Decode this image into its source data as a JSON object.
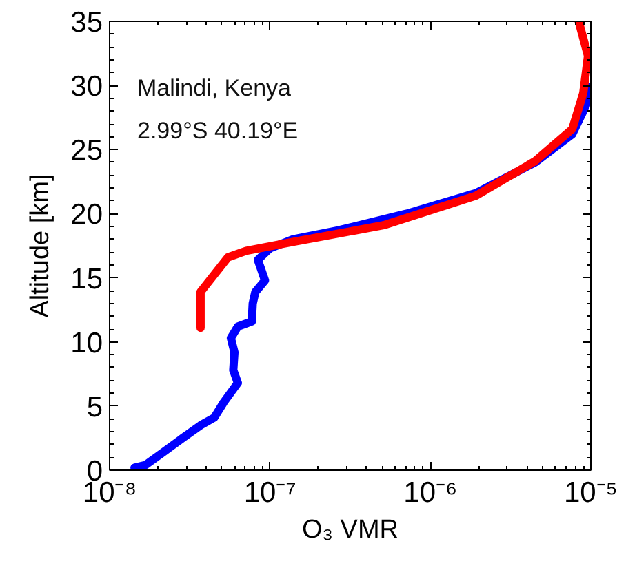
{
  "chart_data": {
    "type": "line",
    "xlabel": "O₃ VMR",
    "ylabel": "Altitude [km]",
    "annotations": [
      "Malindi, Kenya",
      "2.99°S 40.19°E"
    ],
    "log": "x",
    "grid": false,
    "marker": "none",
    "line_style": "solid",
    "xlim": [
      1e-08,
      1e-05
    ],
    "ylim": [
      0,
      35
    ],
    "xticks": [
      {
        "value": 1e-08,
        "label": "10⁻⁸"
      },
      {
        "value": 1e-07,
        "label": "10⁻⁷"
      },
      {
        "value": 1e-06,
        "label": "10⁻⁶"
      },
      {
        "value": 1e-05,
        "label": "10⁻⁵"
      }
    ],
    "yticks": [
      0,
      5,
      10,
      15,
      20,
      25,
      30,
      35
    ],
    "series": [
      {
        "color": "#0000ff",
        "x": [
          1.43e-08,
          1.67e-08,
          2.16e-08,
          2.85e-08,
          3.69e-08,
          4.49e-08,
          5.15e-08,
          6.3e-08,
          5.9e-08,
          6e-08,
          5.7e-08,
          6.3e-08,
          7.7e-08,
          7.8e-08,
          8.1e-08,
          9.3e-08,
          8.4e-08,
          1e-07,
          1.39e-07,
          2.66e-07,
          7.1e-07,
          1.92e-06,
          4.49e-06,
          7.66e-06,
          9.3e-06,
          1e-05
        ],
        "values": [
          0.2,
          0.4,
          1.4,
          2.5,
          3.5,
          4.1,
          5.3,
          6.8,
          7.8,
          9.2,
          10.3,
          11.2,
          11.6,
          13.0,
          13.9,
          14.8,
          16.4,
          17.3,
          18.0,
          18.7,
          20.0,
          21.6,
          24.0,
          26.2,
          28.4,
          29.9
        ]
      },
      {
        "color": "#ff0000",
        "x": [
          3.69e-08,
          3.69e-08,
          5.47e-08,
          7.1e-08,
          1.39e-07,
          5.1e-07,
          1.92e-06,
          4.49e-06,
          7.66e-06,
          8.97e-06,
          9.6e-06,
          8.4e-06
        ],
        "values": [
          11.1,
          13.9,
          16.6,
          17.1,
          17.8,
          19.1,
          21.4,
          24.1,
          26.6,
          29.4,
          32.3,
          35.0
        ]
      }
    ]
  }
}
